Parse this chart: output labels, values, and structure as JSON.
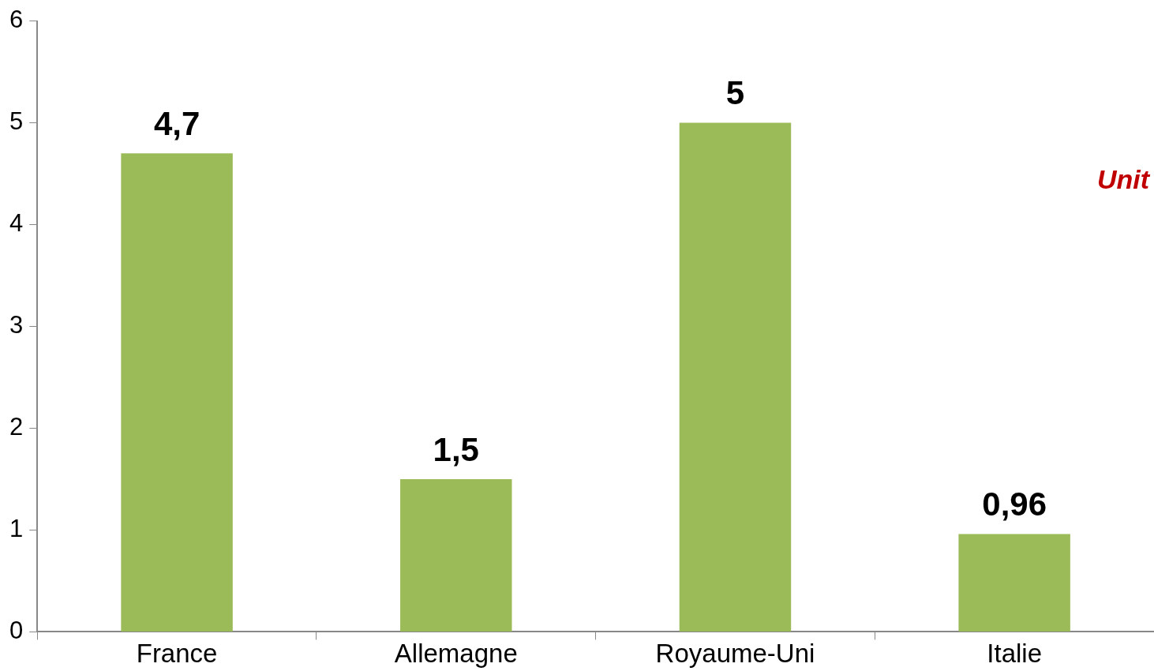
{
  "chart_data": {
    "type": "bar",
    "categories": [
      "France",
      "Allemagne",
      "Royaume-Uni",
      "Italie"
    ],
    "values": [
      4.7,
      1.5,
      5,
      0.96
    ],
    "value_labels": [
      "4,7",
      "1,5",
      "5",
      "0,96"
    ],
    "color": "#9bbb59",
    "ylim": [
      0,
      6
    ],
    "yticks": [
      0,
      1,
      2,
      3,
      4,
      5,
      6
    ],
    "grid": false,
    "legend": false,
    "annotations": [
      "Unit"
    ]
  }
}
